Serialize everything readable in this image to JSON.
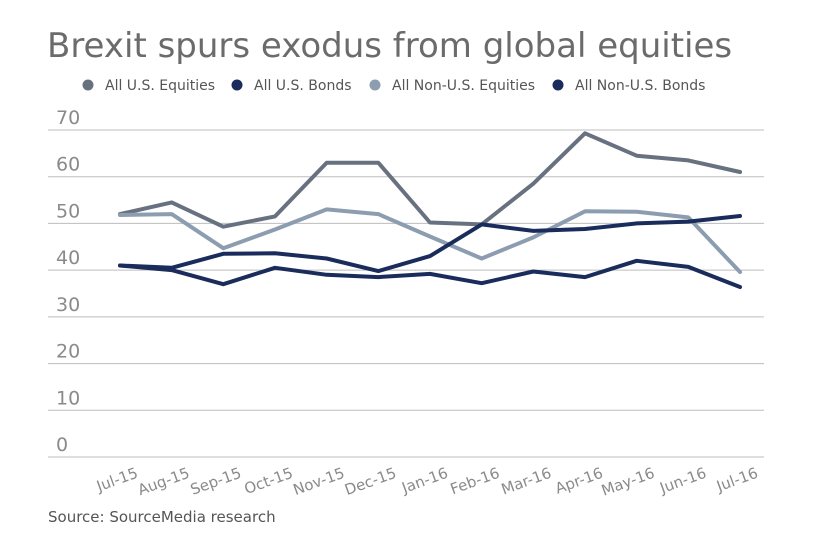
{
  "chart_data": {
    "type": "line",
    "title": "Brexit spurs exodus from global equities",
    "source": "Source: SourceMedia research",
    "categories": [
      "Jul-15",
      "Aug-15",
      "Sep-15",
      "Oct-15",
      "Nov-15",
      "Dec-15",
      "Jan-16",
      "Feb-16",
      "Mar-16",
      "Apr-16",
      "May-16",
      "Jun-16",
      "Jul-16"
    ],
    "ylim": [
      0,
      70
    ],
    "yticks": [
      "0",
      "10",
      "20",
      "30",
      "40",
      "50",
      "60",
      "70"
    ],
    "grid": true,
    "legend_position": "top",
    "xlabel": "",
    "ylabel": "",
    "series": [
      {
        "name": "All U.S. Equities",
        "color": "#67717f",
        "values": [
          52,
          54.5,
          49.3,
          51.5,
          63,
          63,
          50.2,
          49.8,
          58.5,
          69.3,
          64.5,
          63.5,
          61
        ]
      },
      {
        "name": "All U.S. Bonds",
        "color": "#1a2c5b",
        "values": [
          41,
          40,
          37,
          40.5,
          39,
          38.5,
          39.2,
          37.2,
          39.7,
          38.5,
          42,
          40.7,
          36.4
        ]
      },
      {
        "name": "All Non-U.S. Equities",
        "color": "#8c9db0",
        "values": [
          51.8,
          52,
          44.7,
          48.7,
          53,
          52,
          47.2,
          42.5,
          47,
          52.6,
          52.5,
          51.3,
          39.6
        ]
      },
      {
        "name": "All Non-U.S. Bonds",
        "color": "#1a2c5b",
        "values": [
          41,
          40.5,
          43.5,
          43.6,
          42.5,
          39.8,
          43,
          49.8,
          48.4,
          48.8,
          50,
          50.4,
          51.6
        ]
      }
    ]
  }
}
